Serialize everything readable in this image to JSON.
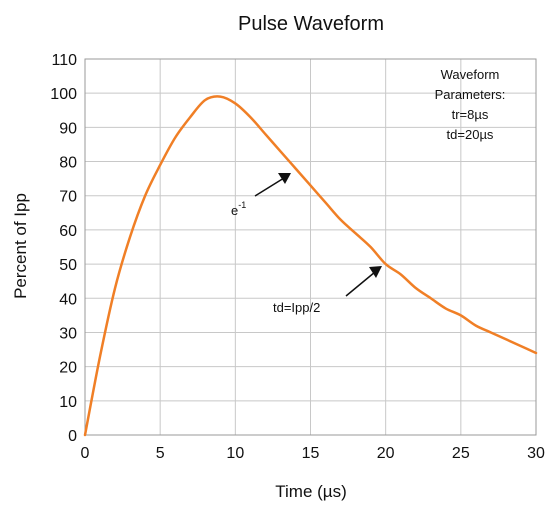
{
  "chart_data": {
    "type": "line",
    "title": "Pulse Waveform",
    "xlabel": "Time (µs)",
    "ylabel": "Percent of  Ipp",
    "xlim": [
      0,
      30
    ],
    "ylim": [
      0,
      110
    ],
    "xticks": [
      "0",
      "5",
      "10",
      "15",
      "20",
      "25",
      "30"
    ],
    "yticks": [
      "0",
      "10",
      "20",
      "30",
      "40",
      "50",
      "60",
      "70",
      "80",
      "90",
      "100",
      "110"
    ],
    "grid": true,
    "legend": {
      "lines": [
        "Waveform",
        "Parameters:",
        "tr=8µs",
        "td=20µs"
      ]
    },
    "annotations": [
      {
        "text": "e",
        "superscript": "-1",
        "x": 14,
        "y": 77
      },
      {
        "text": "td=Ipp/2",
        "x": 20,
        "y": 50
      }
    ],
    "colors": {
      "series": "#f07f26"
    },
    "series": [
      {
        "x": [
          0,
          1,
          2,
          3,
          4,
          5,
          6,
          7,
          8,
          9,
          10,
          11,
          12,
          13,
          14,
          15,
          16,
          17,
          18,
          19,
          20,
          21,
          22,
          23,
          24,
          25,
          26,
          27,
          28,
          29,
          30
        ],
        "values": [
          0,
          23,
          43,
          58,
          70,
          79,
          87,
          93,
          98,
          99,
          97,
          93,
          88,
          83,
          78,
          73,
          68,
          63,
          59,
          55,
          50,
          47,
          43,
          40,
          37,
          35,
          32,
          30,
          28,
          26,
          24
        ]
      }
    ]
  }
}
